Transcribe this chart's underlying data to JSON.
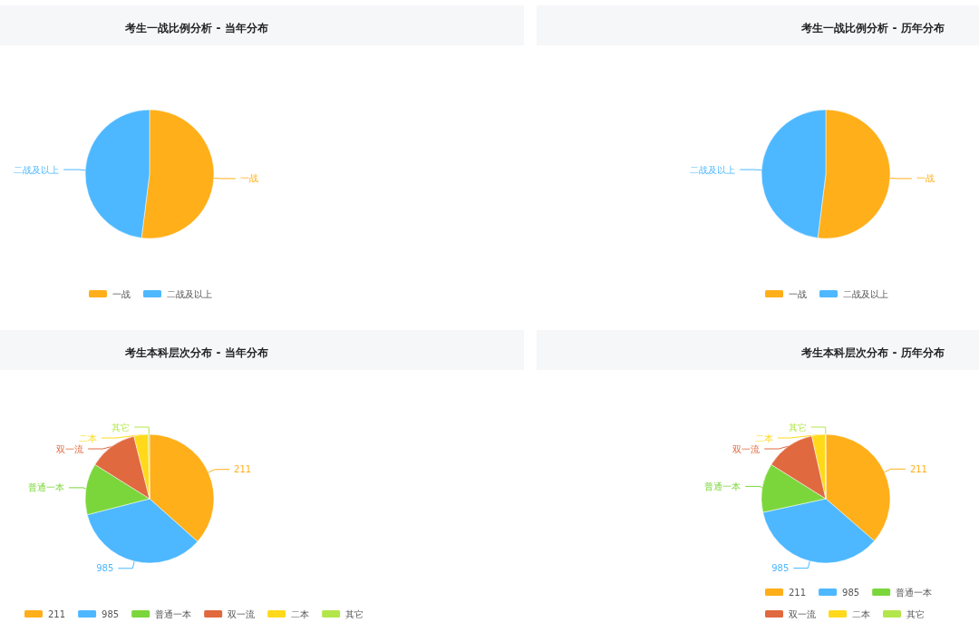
{
  "chart_data": [
    {
      "type": "pie",
      "title": "考生一战比例分析 - 当年分布",
      "categories": [
        "一战",
        "二战及以上"
      ],
      "values": [
        52,
        48
      ],
      "colors": [
        "#ffaf19",
        "#4db8ff"
      ],
      "legend": "bottom"
    },
    {
      "type": "pie",
      "title": "考生一战比例分析 - 历年分布",
      "categories": [
        "一战",
        "二战及以上"
      ],
      "values": [
        52,
        48
      ],
      "colors": [
        "#ffaf19",
        "#4db8ff"
      ],
      "legend": "bottom"
    },
    {
      "type": "pie",
      "title": "考生本科层次分布 - 当年分布",
      "categories": [
        "211",
        "985",
        "普通一本",
        "双一流",
        "二本",
        "其它"
      ],
      "values": [
        36.6,
        34.4,
        12.9,
        12.2,
        3.6,
        0.3
      ],
      "colors": [
        "#ffaf19",
        "#4db8ff",
        "#7bd63b",
        "#e0693f",
        "#ffd91a",
        "#b3e64a"
      ],
      "legend": "bottom"
    },
    {
      "type": "pie",
      "title": "考生本科层次分布 - 历年分布",
      "categories": [
        "211",
        "985",
        "普通一本",
        "双一流",
        "二本",
        "其它"
      ],
      "values": [
        36.4,
        35.2,
        12.3,
        12.6,
        3.4,
        0.1
      ],
      "colors": [
        "#ffaf19",
        "#4db8ff",
        "#7bd63b",
        "#e0693f",
        "#ffd91a",
        "#b3e64a"
      ],
      "legend": "bottom"
    }
  ]
}
